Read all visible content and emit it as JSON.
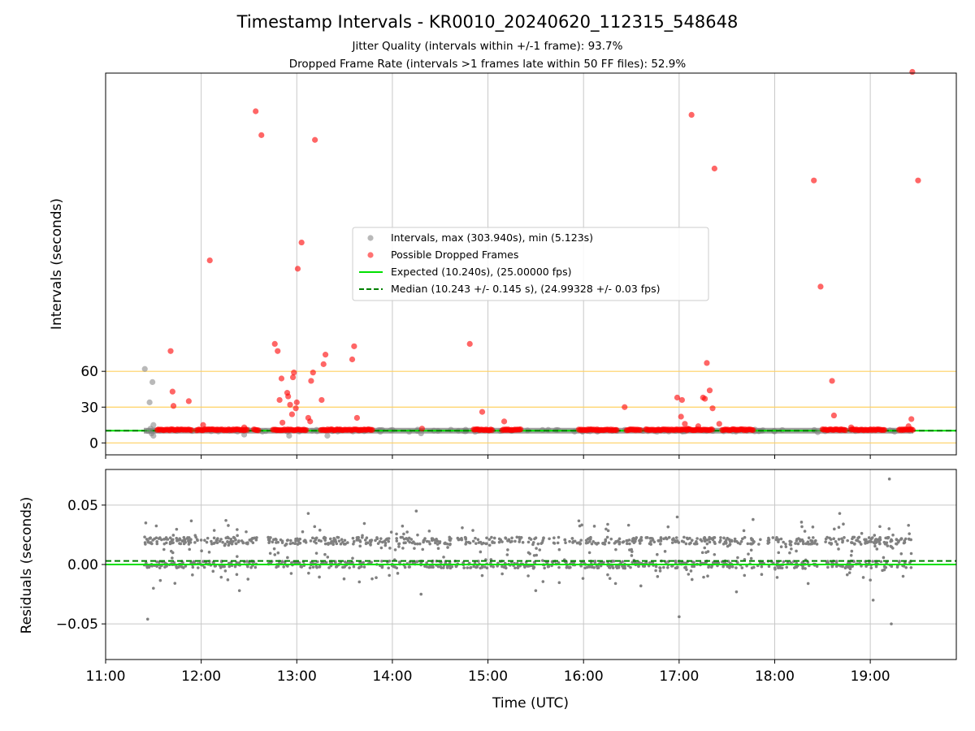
{
  "title": "Timestamp Intervals - KR0010_20240620_112315_548648",
  "subtitle1": "Jitter Quality (intervals within +/-1 frame): 93.7%",
  "subtitle2": "Dropped Frame Rate (intervals >1 frames late within 50 FF files): 52.9%",
  "colors": {
    "intervals": "#808080",
    "dropped": "#ff0000",
    "expected": "#00e000",
    "median": "#008000",
    "threshold": "#ffd060",
    "grid": "#c8c8c8"
  },
  "chart_data": [
    {
      "type": "scatter",
      "xlabel": "Time (UTC)",
      "ylabel": "Intervals (seconds)",
      "x_unit": "hours (UTC)",
      "xlim": [
        11.0,
        19.9
      ],
      "ylim": [
        -10,
        310
      ],
      "yticks": [
        0,
        30,
        60
      ],
      "xticks": [
        {
          "v": 11,
          "label": "11:00"
        },
        {
          "v": 12,
          "label": "12:00"
        },
        {
          "v": 13,
          "label": "13:00"
        },
        {
          "v": 14,
          "label": "14:00"
        },
        {
          "v": 15,
          "label": "15:00"
        },
        {
          "v": 16,
          "label": "16:00"
        },
        {
          "v": 17,
          "label": "17:00"
        },
        {
          "v": 18,
          "label": "18:00"
        },
        {
          "v": 19,
          "label": "19:00"
        }
      ],
      "grid": true,
      "hlines": [
        0,
        30,
        60
      ],
      "legend_position": "center",
      "series": [
        {
          "name": "Intervals, max (303.940s), min (5.123s)",
          "kind": "gray",
          "points": [
            [
              11.41,
              62
            ],
            [
              11.44,
              10
            ],
            [
              11.46,
              34
            ],
            [
              11.48,
              8
            ],
            [
              11.49,
              51
            ],
            [
              11.5,
              15
            ],
            [
              11.5,
              6
            ],
            [
              11.47,
              12
            ],
            [
              12.45,
              7
            ],
            [
              12.92,
              6
            ],
            [
              13.32,
              6
            ],
            [
              14.3,
              8
            ],
            [
              18.45,
              9
            ]
          ]
        },
        {
          "name": "Possible Dropped Frames",
          "kind": "red",
          "points": [
            [
              11.54,
              10.8
            ],
            [
              11.68,
              77
            ],
            [
              11.7,
              43
            ],
            [
              11.71,
              31
            ],
            [
              11.87,
              35
            ],
            [
              12.02,
              15
            ],
            [
              12.09,
              153
            ],
            [
              12.45,
              13
            ],
            [
              12.57,
              278
            ],
            [
              12.63,
              258
            ],
            [
              12.77,
              83
            ],
            [
              12.8,
              77
            ],
            [
              12.82,
              36
            ],
            [
              12.84,
              54
            ],
            [
              12.85,
              17
            ],
            [
              12.9,
              42
            ],
            [
              12.91,
              39
            ],
            [
              12.93,
              32
            ],
            [
              12.95,
              24
            ],
            [
              12.96,
              55
            ],
            [
              12.97,
              59
            ],
            [
              12.99,
              29
            ],
            [
              13.0,
              34
            ],
            [
              13.01,
              146
            ],
            [
              13.05,
              168
            ],
            [
              13.12,
              21
            ],
            [
              13.14,
              18
            ],
            [
              13.15,
              52
            ],
            [
              13.17,
              59
            ],
            [
              13.19,
              254
            ],
            [
              13.26,
              36
            ],
            [
              13.28,
              66
            ],
            [
              13.3,
              74
            ],
            [
              13.58,
              70
            ],
            [
              13.6,
              81
            ],
            [
              13.63,
              21
            ],
            [
              14.31,
              12
            ],
            [
              14.81,
              83
            ],
            [
              14.94,
              26
            ],
            [
              15.17,
              18
            ],
            [
              16.43,
              30
            ],
            [
              16.98,
              38
            ],
            [
              17.02,
              22
            ],
            [
              17.03,
              36
            ],
            [
              17.06,
              16
            ],
            [
              17.09,
              12
            ],
            [
              17.13,
              275
            ],
            [
              17.2,
              14
            ],
            [
              17.25,
              38
            ],
            [
              17.27,
              37
            ],
            [
              17.29,
              67
            ],
            [
              17.32,
              44
            ],
            [
              17.35,
              29
            ],
            [
              17.37,
              230
            ],
            [
              17.42,
              16
            ],
            [
              18.41,
              220
            ],
            [
              18.48,
              131
            ],
            [
              18.6,
              52
            ],
            [
              18.62,
              23
            ],
            [
              18.8,
              13
            ],
            [
              19.4,
              14
            ],
            [
              19.43,
              20
            ],
            [
              19.44,
              311
            ],
            [
              19.5,
              220
            ]
          ]
        }
      ],
      "dense_runs": [
        [
          11.55,
          11.9
        ],
        [
          11.95,
          12.48
        ],
        [
          12.55,
          12.6
        ],
        [
          12.75,
          13.1
        ],
        [
          13.25,
          13.8
        ],
        [
          14.85,
          15.05
        ],
        [
          15.15,
          15.35
        ],
        [
          15.95,
          16.35
        ],
        [
          16.45,
          16.6
        ],
        [
          16.65,
          17.35
        ],
        [
          17.45,
          17.78
        ],
        [
          18.5,
          18.75
        ],
        [
          18.8,
          19.15
        ],
        [
          19.3,
          19.45
        ]
      ],
      "gray_band": [
        11.4,
        19.45
      ],
      "expected": {
        "name": "Expected (10.240s), (25.00000 fps)",
        "y": 10.24
      },
      "median": {
        "name": "Median (10.243 +/- 0.145 s), (24.99328 +/- 0.03 fps)",
        "y": 10.243
      }
    },
    {
      "type": "scatter",
      "xlabel": "Time (UTC)",
      "ylabel": "Residuals (seconds)",
      "xlim": [
        11.0,
        19.9
      ],
      "ylim": [
        -0.08,
        0.08
      ],
      "yticks": [
        {
          "v": 0.05,
          "label": "0.05"
        },
        {
          "v": 0.0,
          "label": "0.00"
        },
        {
          "v": -0.05,
          "label": "−0.05"
        }
      ],
      "xticks": [
        {
          "v": 11,
          "label": "11:00"
        },
        {
          "v": 12,
          "label": "12:00"
        },
        {
          "v": 13,
          "label": "13:00"
        },
        {
          "v": 14,
          "label": "14:00"
        },
        {
          "v": 15,
          "label": "15:00"
        },
        {
          "v": 16,
          "label": "16:00"
        },
        {
          "v": 17,
          "label": "17:00"
        },
        {
          "v": 18,
          "label": "18:00"
        },
        {
          "v": 19,
          "label": "19:00"
        }
      ],
      "grid": true,
      "expected_y": 0.0,
      "median_y": 0.003,
      "band_residuals": [
        0.0,
        0.02
      ],
      "gap_ranges": [
        [
          12.6,
          12.7
        ],
        [
          15.75,
          15.8
        ],
        [
          18.45,
          18.52
        ]
      ],
      "outliers": [
        [
          11.42,
          0.035
        ],
        [
          11.44,
          -0.046
        ],
        [
          13.12,
          0.043
        ],
        [
          14.25,
          0.045
        ],
        [
          16.98,
          0.04
        ],
        [
          17.0,
          -0.044
        ],
        [
          18.68,
          0.043
        ],
        [
          19.03,
          -0.03
        ],
        [
          19.2,
          0.072
        ],
        [
          19.22,
          -0.05
        ],
        [
          18.35,
          -0.016
        ],
        [
          11.5,
          -0.02
        ],
        [
          14.3,
          -0.025
        ],
        [
          15.5,
          -0.022
        ],
        [
          16.6,
          -0.018
        ],
        [
          17.6,
          -0.023
        ],
        [
          12.4,
          -0.022
        ],
        [
          19.4,
          0.033
        ]
      ]
    }
  ]
}
